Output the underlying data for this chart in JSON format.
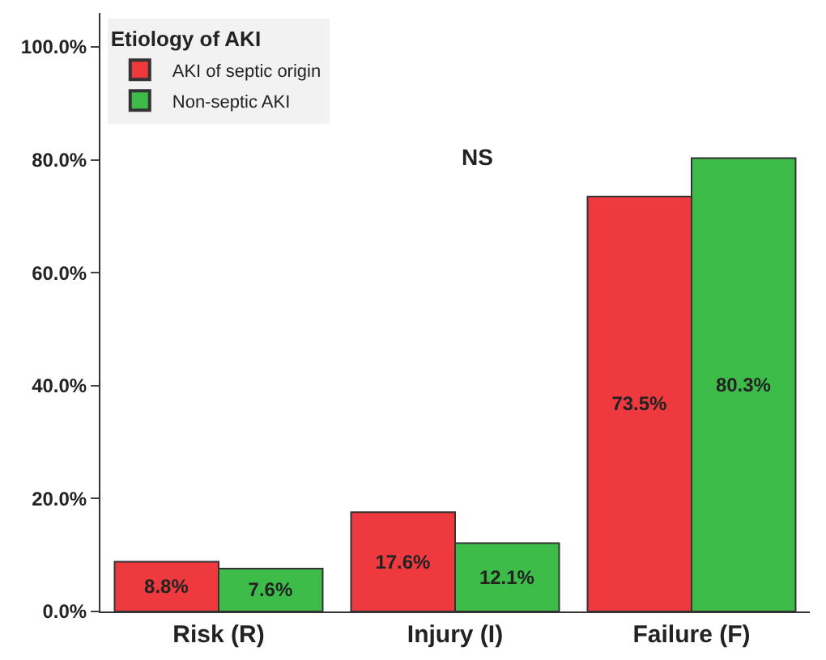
{
  "chart_data": {
    "type": "bar",
    "legend_title": "Etiology of AKI",
    "categories": [
      "Risk (R)",
      "Injury (I)",
      "Failure (F)"
    ],
    "series": [
      {
        "name": "AKI of septic origin",
        "color": "#ee3a3f",
        "values": [
          8.8,
          17.6,
          73.5
        ],
        "value_labels": [
          "8.8%",
          "17.6%",
          "73.5%"
        ]
      },
      {
        "name": "Non-septic AKI",
        "color": "#3ebc4a",
        "values": [
          7.6,
          12.1,
          80.3
        ],
        "value_labels": [
          "7.6%",
          "12.1%",
          "80.3%"
        ]
      }
    ],
    "ylim": [
      0,
      106
    ],
    "yticks": [
      {
        "value": 0,
        "label": "0.0%"
      },
      {
        "value": 20,
        "label": "20.0%"
      },
      {
        "value": 40,
        "label": "40.0%"
      },
      {
        "value": 60,
        "label": "60.0%"
      },
      {
        "value": 80,
        "label": "80.0%"
      },
      {
        "value": 100,
        "label": "100.0%"
      }
    ],
    "annotations": [
      "NS"
    ],
    "legend": "top left"
  }
}
